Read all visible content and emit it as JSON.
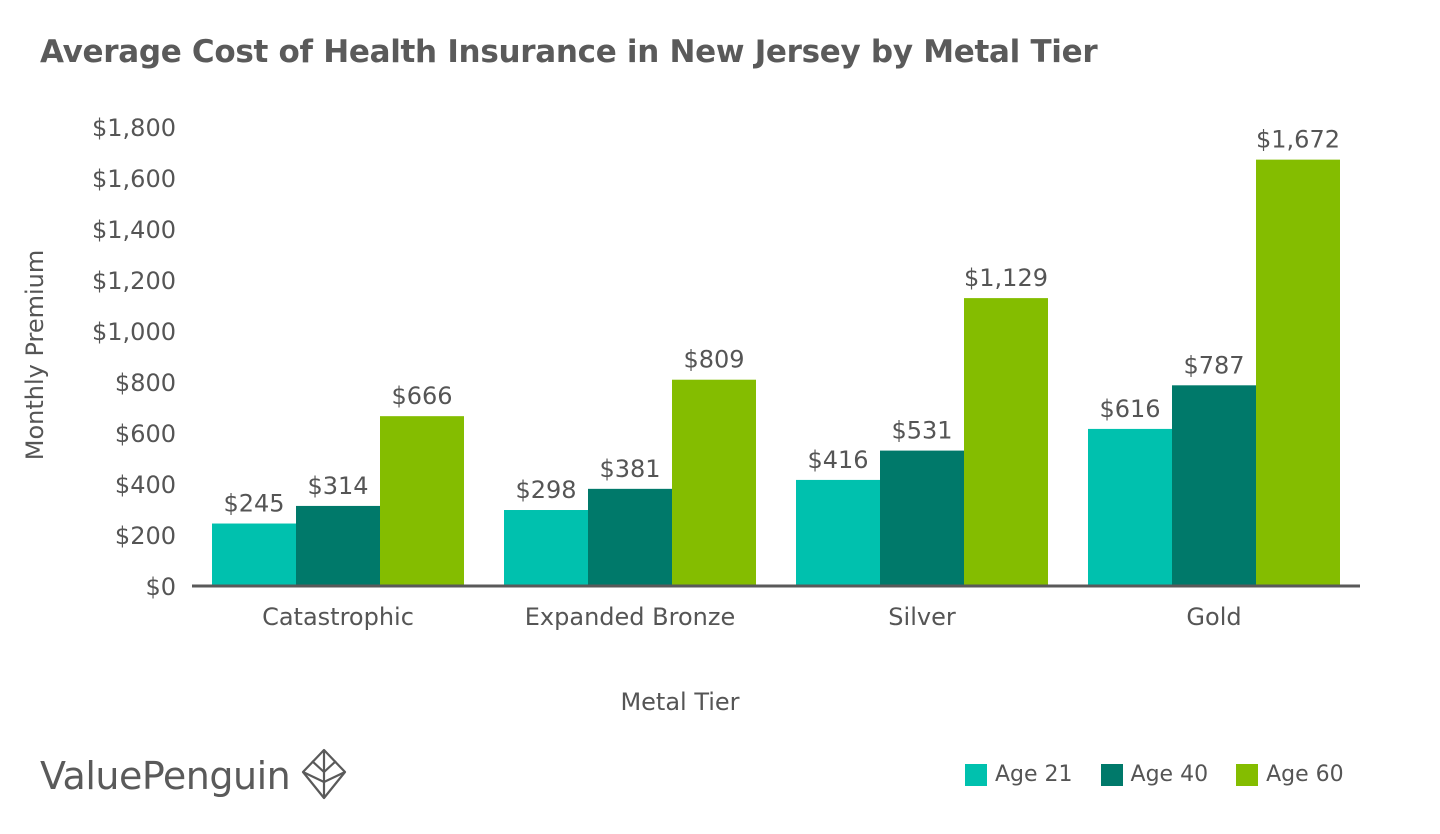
{
  "chart_data": {
    "type": "bar",
    "title": "Average Cost of Health Insurance in New Jersey by Metal Tier",
    "xlabel": "Metal Tier",
    "ylabel": "Monthly Premium",
    "categories": [
      "Catastrophic",
      "Expanded Bronze",
      "Silver",
      "Gold"
    ],
    "series": [
      {
        "name": "Age 21",
        "color": "#00c1ae",
        "values": [
          245,
          298,
          416,
          616
        ],
        "labels": [
          "$245",
          "$298",
          "$416",
          "$616"
        ]
      },
      {
        "name": "Age 40",
        "color": "#00796a",
        "values": [
          314,
          381,
          531,
          787
        ],
        "labels": [
          "$314",
          "$381",
          "$531",
          "$787"
        ]
      },
      {
        "name": "Age 60",
        "color": "#84bd00",
        "values": [
          666,
          809,
          1129,
          1672
        ],
        "labels": [
          "$666",
          "$809",
          "$1,129",
          "$1,672"
        ]
      }
    ],
    "ylim": [
      0,
      1800
    ],
    "yticks": [
      0,
      200,
      400,
      600,
      800,
      1000,
      1200,
      1400,
      1600,
      1800
    ],
    "ytick_labels": [
      "$0",
      "$200",
      "$400",
      "$600",
      "$800",
      "$1,000",
      "$1,200",
      "$1,400",
      "$1,600",
      "$1,800"
    ],
    "grid": false,
    "legend_position": "bottom-right"
  },
  "brand": {
    "name": "ValuePenguin",
    "icon": "valuepenguin-logo-icon"
  }
}
